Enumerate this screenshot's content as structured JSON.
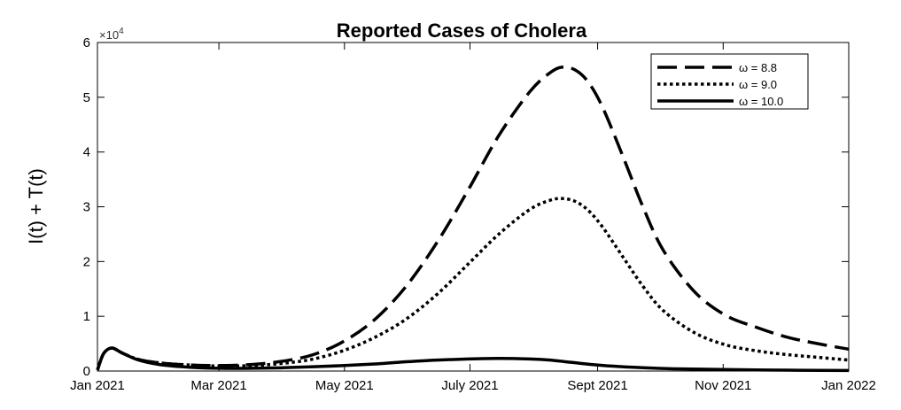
{
  "chart_data": {
    "type": "line",
    "title": "Reported Cases of Cholera",
    "xlabel": "",
    "ylabel": "I(t) + T(t)",
    "y_multiplier_base": "×10",
    "y_multiplier_exp": "4",
    "xlim": [
      0,
      365
    ],
    "ylim": [
      0,
      6
    ],
    "x_ticks": [
      {
        "day": 0,
        "label": "Jan 2021"
      },
      {
        "day": 59,
        "label": "Mar 2021"
      },
      {
        "day": 120,
        "label": "May 2021"
      },
      {
        "day": 181,
        "label": "July 2021"
      },
      {
        "day": 243,
        "label": "Sept 2021"
      },
      {
        "day": 304,
        "label": "Nov 2021"
      },
      {
        "day": 365,
        "label": "Jan 2022"
      }
    ],
    "y_ticks": [
      0,
      1,
      2,
      3,
      4,
      5,
      6
    ],
    "grid": false,
    "legend_position": "top-right",
    "series": [
      {
        "name": "ω = 8.8",
        "dash": "dashed",
        "x": [
          0,
          3,
          7,
          12,
          20,
          30,
          45,
          60,
          75,
          90,
          105,
          120,
          135,
          150,
          165,
          180,
          195,
          210,
          220,
          226,
          232,
          238,
          245,
          255,
          265,
          275,
          290,
          305,
          320,
          335,
          350,
          365
        ],
        "y": [
          0.02,
          0.32,
          0.42,
          0.33,
          0.21,
          0.15,
          0.11,
          0.1,
          0.12,
          0.18,
          0.3,
          0.55,
          0.95,
          1.55,
          2.35,
          3.3,
          4.3,
          5.1,
          5.45,
          5.55,
          5.5,
          5.3,
          4.85,
          3.95,
          3.0,
          2.2,
          1.45,
          1.02,
          0.8,
          0.62,
          0.5,
          0.4
        ]
      },
      {
        "name": "ω = 9.0",
        "dash": "dotted",
        "x": [
          0,
          3,
          7,
          12,
          20,
          30,
          45,
          60,
          75,
          90,
          105,
          120,
          135,
          150,
          165,
          180,
          195,
          210,
          220,
          226,
          232,
          238,
          245,
          255,
          265,
          275,
          290,
          305,
          320,
          335,
          350,
          365
        ],
        "y": [
          0.02,
          0.32,
          0.42,
          0.33,
          0.21,
          0.15,
          0.11,
          0.09,
          0.1,
          0.14,
          0.22,
          0.38,
          0.62,
          0.95,
          1.4,
          1.95,
          2.5,
          2.95,
          3.12,
          3.15,
          3.1,
          2.95,
          2.65,
          2.1,
          1.55,
          1.1,
          0.7,
          0.48,
          0.37,
          0.3,
          0.25,
          0.2
        ]
      },
      {
        "name": "ω = 10.0",
        "dash": "solid",
        "x": [
          0,
          3,
          7,
          12,
          20,
          30,
          45,
          60,
          75,
          90,
          105,
          120,
          135,
          150,
          165,
          180,
          195,
          210,
          220,
          230,
          240,
          250,
          265,
          280,
          300,
          320,
          340,
          365
        ],
        "y": [
          0.02,
          0.32,
          0.42,
          0.33,
          0.2,
          0.12,
          0.07,
          0.05,
          0.05,
          0.06,
          0.08,
          0.1,
          0.13,
          0.17,
          0.2,
          0.22,
          0.23,
          0.22,
          0.2,
          0.16,
          0.12,
          0.09,
          0.06,
          0.04,
          0.03,
          0.02,
          0.015,
          0.01
        ]
      }
    ]
  }
}
